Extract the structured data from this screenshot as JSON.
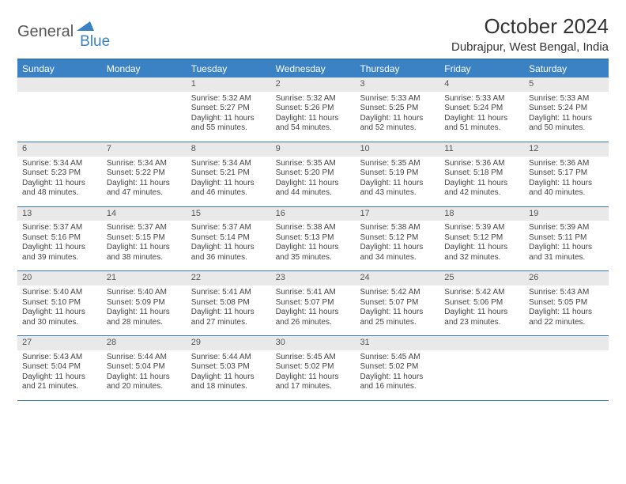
{
  "logo": {
    "word1": "General",
    "word2": "Blue"
  },
  "title": "October 2024",
  "location": "Dubrajpur, West Bengal, India",
  "colors": {
    "header_bg": "#3b82c4",
    "header_text": "#ffffff",
    "rule": "#3875a8",
    "daynum_bg": "#e9e9e9",
    "body_text": "#444444"
  },
  "day_names": [
    "Sunday",
    "Monday",
    "Tuesday",
    "Wednesday",
    "Thursday",
    "Friday",
    "Saturday"
  ],
  "weeks": [
    [
      {
        "n": "",
        "sr": "",
        "ss": "",
        "dl": ""
      },
      {
        "n": "",
        "sr": "",
        "ss": "",
        "dl": ""
      },
      {
        "n": "1",
        "sr": "Sunrise: 5:32 AM",
        "ss": "Sunset: 5:27 PM",
        "dl": "Daylight: 11 hours and 55 minutes."
      },
      {
        "n": "2",
        "sr": "Sunrise: 5:32 AM",
        "ss": "Sunset: 5:26 PM",
        "dl": "Daylight: 11 hours and 54 minutes."
      },
      {
        "n": "3",
        "sr": "Sunrise: 5:33 AM",
        "ss": "Sunset: 5:25 PM",
        "dl": "Daylight: 11 hours and 52 minutes."
      },
      {
        "n": "4",
        "sr": "Sunrise: 5:33 AM",
        "ss": "Sunset: 5:24 PM",
        "dl": "Daylight: 11 hours and 51 minutes."
      },
      {
        "n": "5",
        "sr": "Sunrise: 5:33 AM",
        "ss": "Sunset: 5:24 PM",
        "dl": "Daylight: 11 hours and 50 minutes."
      }
    ],
    [
      {
        "n": "6",
        "sr": "Sunrise: 5:34 AM",
        "ss": "Sunset: 5:23 PM",
        "dl": "Daylight: 11 hours and 48 minutes."
      },
      {
        "n": "7",
        "sr": "Sunrise: 5:34 AM",
        "ss": "Sunset: 5:22 PM",
        "dl": "Daylight: 11 hours and 47 minutes."
      },
      {
        "n": "8",
        "sr": "Sunrise: 5:34 AM",
        "ss": "Sunset: 5:21 PM",
        "dl": "Daylight: 11 hours and 46 minutes."
      },
      {
        "n": "9",
        "sr": "Sunrise: 5:35 AM",
        "ss": "Sunset: 5:20 PM",
        "dl": "Daylight: 11 hours and 44 minutes."
      },
      {
        "n": "10",
        "sr": "Sunrise: 5:35 AM",
        "ss": "Sunset: 5:19 PM",
        "dl": "Daylight: 11 hours and 43 minutes."
      },
      {
        "n": "11",
        "sr": "Sunrise: 5:36 AM",
        "ss": "Sunset: 5:18 PM",
        "dl": "Daylight: 11 hours and 42 minutes."
      },
      {
        "n": "12",
        "sr": "Sunrise: 5:36 AM",
        "ss": "Sunset: 5:17 PM",
        "dl": "Daylight: 11 hours and 40 minutes."
      }
    ],
    [
      {
        "n": "13",
        "sr": "Sunrise: 5:37 AM",
        "ss": "Sunset: 5:16 PM",
        "dl": "Daylight: 11 hours and 39 minutes."
      },
      {
        "n": "14",
        "sr": "Sunrise: 5:37 AM",
        "ss": "Sunset: 5:15 PM",
        "dl": "Daylight: 11 hours and 38 minutes."
      },
      {
        "n": "15",
        "sr": "Sunrise: 5:37 AM",
        "ss": "Sunset: 5:14 PM",
        "dl": "Daylight: 11 hours and 36 minutes."
      },
      {
        "n": "16",
        "sr": "Sunrise: 5:38 AM",
        "ss": "Sunset: 5:13 PM",
        "dl": "Daylight: 11 hours and 35 minutes."
      },
      {
        "n": "17",
        "sr": "Sunrise: 5:38 AM",
        "ss": "Sunset: 5:12 PM",
        "dl": "Daylight: 11 hours and 34 minutes."
      },
      {
        "n": "18",
        "sr": "Sunrise: 5:39 AM",
        "ss": "Sunset: 5:12 PM",
        "dl": "Daylight: 11 hours and 32 minutes."
      },
      {
        "n": "19",
        "sr": "Sunrise: 5:39 AM",
        "ss": "Sunset: 5:11 PM",
        "dl": "Daylight: 11 hours and 31 minutes."
      }
    ],
    [
      {
        "n": "20",
        "sr": "Sunrise: 5:40 AM",
        "ss": "Sunset: 5:10 PM",
        "dl": "Daylight: 11 hours and 30 minutes."
      },
      {
        "n": "21",
        "sr": "Sunrise: 5:40 AM",
        "ss": "Sunset: 5:09 PM",
        "dl": "Daylight: 11 hours and 28 minutes."
      },
      {
        "n": "22",
        "sr": "Sunrise: 5:41 AM",
        "ss": "Sunset: 5:08 PM",
        "dl": "Daylight: 11 hours and 27 minutes."
      },
      {
        "n": "23",
        "sr": "Sunrise: 5:41 AM",
        "ss": "Sunset: 5:07 PM",
        "dl": "Daylight: 11 hours and 26 minutes."
      },
      {
        "n": "24",
        "sr": "Sunrise: 5:42 AM",
        "ss": "Sunset: 5:07 PM",
        "dl": "Daylight: 11 hours and 25 minutes."
      },
      {
        "n": "25",
        "sr": "Sunrise: 5:42 AM",
        "ss": "Sunset: 5:06 PM",
        "dl": "Daylight: 11 hours and 23 minutes."
      },
      {
        "n": "26",
        "sr": "Sunrise: 5:43 AM",
        "ss": "Sunset: 5:05 PM",
        "dl": "Daylight: 11 hours and 22 minutes."
      }
    ],
    [
      {
        "n": "27",
        "sr": "Sunrise: 5:43 AM",
        "ss": "Sunset: 5:04 PM",
        "dl": "Daylight: 11 hours and 21 minutes."
      },
      {
        "n": "28",
        "sr": "Sunrise: 5:44 AM",
        "ss": "Sunset: 5:04 PM",
        "dl": "Daylight: 11 hours and 20 minutes."
      },
      {
        "n": "29",
        "sr": "Sunrise: 5:44 AM",
        "ss": "Sunset: 5:03 PM",
        "dl": "Daylight: 11 hours and 18 minutes."
      },
      {
        "n": "30",
        "sr": "Sunrise: 5:45 AM",
        "ss": "Sunset: 5:02 PM",
        "dl": "Daylight: 11 hours and 17 minutes."
      },
      {
        "n": "31",
        "sr": "Sunrise: 5:45 AM",
        "ss": "Sunset: 5:02 PM",
        "dl": "Daylight: 11 hours and 16 minutes."
      },
      {
        "n": "",
        "sr": "",
        "ss": "",
        "dl": ""
      },
      {
        "n": "",
        "sr": "",
        "ss": "",
        "dl": ""
      }
    ]
  ]
}
